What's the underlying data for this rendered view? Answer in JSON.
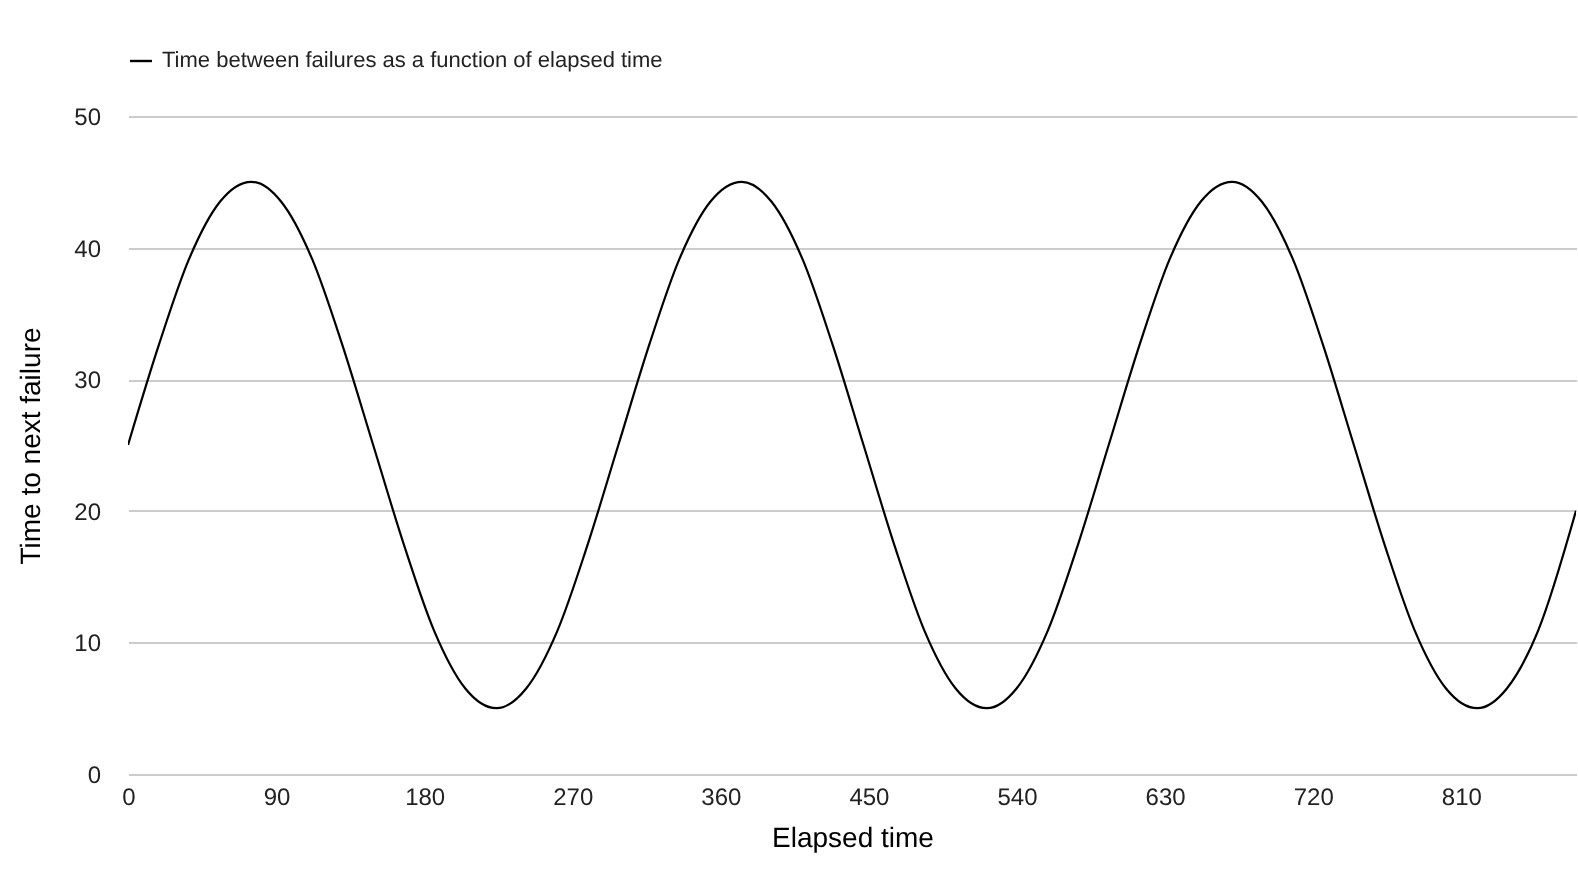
{
  "chart_data": {
    "type": "line",
    "xlabel": "Elapsed time",
    "ylabel": "Time to next failure",
    "x": [
      0,
      19,
      37,
      56,
      75,
      93,
      112,
      130,
      149,
      168,
      186,
      205,
      224,
      242,
      261,
      279,
      298,
      317,
      335,
      354,
      373,
      391,
      410,
      428,
      447,
      466,
      484,
      503,
      522,
      540,
      559,
      577,
      596,
      615,
      633,
      652,
      671,
      689,
      708,
      726,
      745,
      764,
      782,
      801,
      820,
      838,
      857,
      880
    ],
    "series": [
      {
        "name": "Time between failures as a function of elapsed time",
        "color": "#000000",
        "values": [
          25,
          32.7,
          39.1,
          43.5,
          45,
          43.5,
          39.1,
          32.7,
          25,
          17.3,
          10.9,
          6.5,
          5,
          6.5,
          10.9,
          17.3,
          25,
          32.7,
          39.1,
          43.5,
          45,
          43.5,
          39.1,
          32.7,
          25,
          17.3,
          10.9,
          6.5,
          5,
          6.5,
          10.9,
          17.3,
          25,
          32.7,
          39.1,
          43.5,
          45,
          43.5,
          39.1,
          32.7,
          25,
          17.3,
          10.9,
          6.5,
          5,
          6.5,
          10.9,
          20
        ]
      }
    ],
    "xlim": [
      0,
      880
    ],
    "xticks": [
      0,
      90,
      180,
      270,
      360,
      450,
      540,
      630,
      720,
      810
    ],
    "ylim": [
      0,
      50
    ],
    "yticks": [
      0,
      10,
      20,
      30,
      40,
      50
    ],
    "grid": "y",
    "legend": "top",
    "marker": "none",
    "line_style": "solid"
  }
}
